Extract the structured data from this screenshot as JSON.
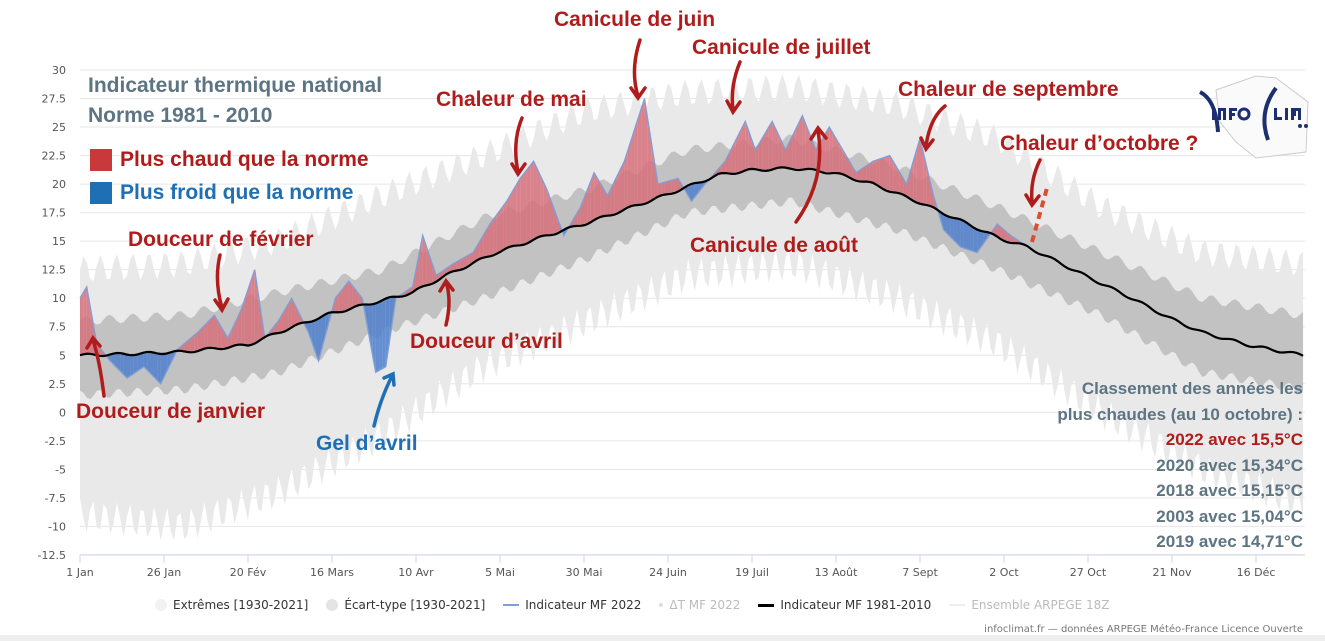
{
  "chart_data": {
    "type": "area",
    "title": "Indicateur thermique national",
    "subtitle": "Norme 1981 - 2010",
    "ylim": [
      -12.5,
      30
    ],
    "yticks": [
      "30",
      "27.5",
      "25",
      "22.5",
      "20",
      "17.5",
      "15",
      "12.5",
      "10",
      "7.5",
      "5",
      "2.5",
      "0",
      "-2.5",
      "-5",
      "-7.5",
      "-10",
      "-12.5"
    ],
    "xticks": [
      "1 Jan",
      "26 Jan",
      "20 Fév",
      "16 Mars",
      "10 Avr",
      "5 Mai",
      "30 Mai",
      "24 Juin",
      "19 Juil",
      "13 Août",
      "7 Sept",
      "2 Oct",
      "27 Oct",
      "21 Nov",
      "16 Déc"
    ],
    "grid": "horizontal",
    "legend_placement": "bottom",
    "legend": [
      "Extrêmes [1930-2021]",
      "Écart-type [1930-2021]",
      "Indicateur MF 2022",
      "ΔT MF 2022",
      "Indicateur MF 1981-2010",
      "Ensemble ARPEGE 18Z"
    ],
    "key": {
      "warm": "Plus chaud que la norme",
      "cold": "Plus froid que la norme"
    },
    "colors": {
      "warm": "#c9383a",
      "cold": "#1f6fb5",
      "line2022": "#7f9fd6",
      "normal": "#000000",
      "stddev": "#c2c2c2",
      "extremes": "#e9e9e9"
    },
    "normal_1981_2010": {
      "x": [
        "01-01",
        "01-15",
        "02-01",
        "02-20",
        "03-01",
        "03-16",
        "04-01",
        "04-10",
        "04-20",
        "05-05",
        "05-20",
        "06-01",
        "06-24",
        "07-10",
        "07-19",
        "08-01",
        "08-13",
        "08-25",
        "09-07",
        "09-20",
        "10-02",
        "10-10",
        "10-27",
        "11-10",
        "11-21",
        "12-01",
        "12-16",
        "12-31"
      ],
      "y": [
        5,
        5.1,
        5.3,
        5.9,
        7,
        8.6,
        9.8,
        10.5,
        12,
        14,
        15.5,
        16.6,
        19,
        20.8,
        21.2,
        21.4,
        21,
        20,
        18.5,
        16.8,
        15.2,
        14.5,
        12,
        10,
        8.3,
        7,
        5.8,
        5
      ]
    },
    "indicator_2022": {
      "x": [
        "01-01",
        "01-03",
        "01-06",
        "01-10",
        "01-15",
        "01-20",
        "01-25",
        "01-30",
        "02-05",
        "02-10",
        "02-14",
        "02-18",
        "02-22",
        "02-25",
        "03-01",
        "03-05",
        "03-10",
        "03-13",
        "03-18",
        "03-22",
        "03-26",
        "03-30",
        "04-02",
        "04-05",
        "04-10",
        "04-13",
        "04-17",
        "04-22",
        "04-28",
        "05-03",
        "05-08",
        "05-12",
        "05-16",
        "05-20",
        "05-25",
        "05-30",
        "06-03",
        "06-07",
        "06-12",
        "06-18",
        "06-22",
        "06-28",
        "07-02",
        "07-06",
        "07-12",
        "07-18",
        "07-21",
        "07-26",
        "07-30",
        "08-04",
        "08-08",
        "08-12",
        "08-15",
        "08-20",
        "08-25",
        "08-30",
        "09-04",
        "09-08",
        "09-12",
        "09-15",
        "09-20",
        "09-25",
        "10-01",
        "10-05",
        "10-10"
      ],
      "y": [
        10,
        11,
        6,
        4.5,
        3,
        4,
        2.5,
        5.5,
        7,
        8.5,
        6.5,
        9,
        12.5,
        6.5,
        8,
        10,
        7,
        4.5,
        10,
        11.5,
        10,
        3.5,
        4,
        10,
        11,
        15.5,
        12,
        13,
        14,
        16.5,
        18.5,
        20.5,
        22,
        19.5,
        15.5,
        18,
        21,
        19,
        22,
        27.5,
        20,
        20.5,
        18.5,
        20,
        22,
        25.5,
        23,
        25.5,
        23,
        26,
        23,
        25,
        23.5,
        21,
        22,
        22.5,
        20,
        24,
        19,
        16,
        14.5,
        14,
        16.5,
        15.5,
        14.5
      ]
    },
    "stddev_band": {
      "x": [
        "01-01",
        "02-01",
        "03-01",
        "04-01",
        "05-01",
        "06-01",
        "07-01",
        "08-01",
        "09-01",
        "10-01",
        "11-01",
        "12-01",
        "12-31"
      ],
      "low": [
        1.5,
        2,
        3.5,
        7,
        10,
        13.5,
        17.5,
        18.5,
        16,
        12.5,
        8.5,
        3.5,
        2
      ],
      "high": [
        8,
        8.5,
        10.5,
        12.5,
        17,
        19.5,
        23,
        24,
        21.5,
        18,
        14,
        10,
        8.5
      ]
    },
    "extremes_band": {
      "x": [
        "01-01",
        "02-01",
        "03-01",
        "04-01",
        "05-01",
        "06-01",
        "07-01",
        "08-01",
        "09-01",
        "10-01",
        "11-01",
        "12-01",
        "12-31"
      ],
      "low": [
        -9,
        -10,
        -7,
        -2,
        4,
        8,
        12,
        13,
        10,
        6,
        0,
        -5,
        -8
      ],
      "high": [
        12.5,
        13,
        15,
        19,
        22.5,
        26.5,
        28,
        28.5,
        27,
        24,
        18,
        14,
        13
      ]
    },
    "annotations": {
      "jan": "Douceur de janvier",
      "feb": "Douceur de février",
      "apr_gel": "Gel d’avril",
      "apr_douceur": "Douceur d’avril",
      "may": "Chaleur de mai",
      "jun": "Canicule de juin",
      "jul": "Canicule de juillet",
      "aug": "Canicule de août",
      "sep": "Chaleur de septembre",
      "oct": "Chaleur d’octobre ?"
    },
    "ranking": {
      "title_line1": "Classement des années les",
      "title_line2": "plus chaudes (au 10 octobre) :",
      "entries": [
        "2022 avec 15,5°C",
        "2020 avec 15,34°C",
        "2018 avec 15,15°C",
        "2003 avec 15,04°C",
        "2019 avec 14,71°C"
      ]
    }
  },
  "logo": "INFOCLIMAT",
  "credit": "infoclimat.fr — données ARPEGE Météo-France Licence Ouverte"
}
